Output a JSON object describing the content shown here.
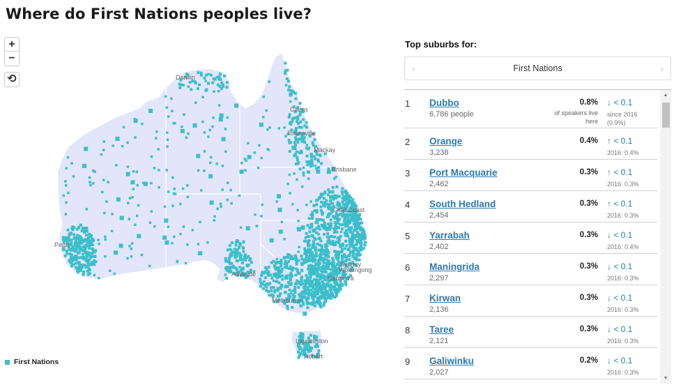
{
  "page": {
    "title": "Where do First Nations peoples live?"
  },
  "map": {
    "controls": {
      "zoom_in": "+",
      "zoom_out": "−",
      "reset": "⟲"
    },
    "city_labels": [
      "Darwin",
      "Townsville",
      "Mackay",
      "Brisbane",
      "Gold Coast",
      "Perth",
      "Adelaide",
      "Sydney",
      "Wollongong",
      "Melbourne",
      "Canberra",
      "Launceston",
      "Hobart",
      "Cairns"
    ],
    "colors": {
      "land": "#e3e6fa",
      "dots": "#3bbfca",
      "borders": "#ffffff"
    },
    "legend": {
      "label": "First Nations"
    }
  },
  "panel": {
    "heading": "Top suburbs for:",
    "selector": {
      "prev_icon": "‹",
      "label": "First Nations",
      "next_icon": "›"
    },
    "rows": [
      {
        "rank": "1",
        "name": "Dubbo",
        "people": "6,786 people",
        "pct": "0.8%",
        "pct_note": "of speakers live here",
        "change": "↓ < 0.1",
        "change_note": "since 2016 (0.9%)"
      },
      {
        "rank": "2",
        "name": "Orange",
        "people": "3,238",
        "pct": "0.4%",
        "change": "↑ < 0.1",
        "change_note": "2016: 0.4%"
      },
      {
        "rank": "3",
        "name": "Port Macquarie",
        "people": "2,462",
        "pct": "0.3%",
        "change": "↑ < 0.1",
        "change_note": "2016: 0.3%"
      },
      {
        "rank": "4",
        "name": "South Hedland",
        "people": "2,454",
        "pct": "0.3%",
        "change": "↑ < 0.1",
        "change_note": "2016: 0.3%"
      },
      {
        "rank": "5",
        "name": "Yarrabah",
        "people": "2,402",
        "pct": "0.3%",
        "change": "↓ < 0.1",
        "change_note": "2016: 0.4%"
      },
      {
        "rank": "6",
        "name": "Maningrida",
        "people": "2,297",
        "pct": "0.3%",
        "change": "↓ < 0.1",
        "change_note": "2016: 0.3%"
      },
      {
        "rank": "7",
        "name": "Kirwan",
        "people": "2,136",
        "pct": "0.3%",
        "change": "↓ < 0.1",
        "change_note": "2016: 0.3%"
      },
      {
        "rank": "8",
        "name": "Taree",
        "people": "2,121",
        "pct": "0.3%",
        "change": "↓ < 0.1",
        "change_note": "2016: 0.3%"
      },
      {
        "rank": "9",
        "name": "Galiwinku",
        "people": "2,027",
        "pct": "0.2%",
        "change": "↓ < 0.1",
        "change_note": "2016: 0.3%"
      }
    ],
    "scrollbar": {
      "up_icon": "▲",
      "down_icon": "▼"
    }
  }
}
